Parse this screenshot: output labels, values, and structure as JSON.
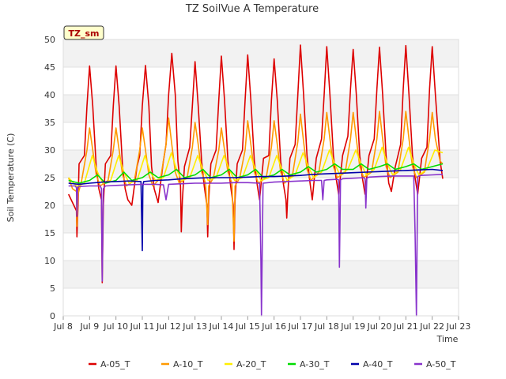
{
  "chart_data": {
    "type": "line",
    "title": "TZ SoilVue A Temperature",
    "xlabel": "Time",
    "ylabel": "Soil Temperature (C)",
    "badge": "TZ_sm",
    "xlim": [
      8,
      23
    ],
    "ylim": [
      0,
      50
    ],
    "x_ticks": [
      {
        "value": 8,
        "label": "Jul 8"
      },
      {
        "value": 9,
        "label": "Jul 9"
      },
      {
        "value": 10,
        "label": "Jul 10"
      },
      {
        "value": 11,
        "label": "Jul 11"
      },
      {
        "value": 12,
        "label": "Jul 12"
      },
      {
        "value": 13,
        "label": "Jul 13"
      },
      {
        "value": 14,
        "label": "Jul 14"
      },
      {
        "value": 15,
        "label": "Jul 15"
      },
      {
        "value": 16,
        "label": "Jul 16"
      },
      {
        "value": 17,
        "label": "Jul 17"
      },
      {
        "value": 18,
        "label": "Jul 18"
      },
      {
        "value": 19,
        "label": "Jul 19"
      },
      {
        "value": 20,
        "label": "Jul 20"
      },
      {
        "value": 21,
        "label": "Jul 21"
      },
      {
        "value": 22,
        "label": "Jul 22"
      },
      {
        "value": 23,
        "label": "Jul 23"
      }
    ],
    "y_ticks": [
      0,
      5,
      10,
      15,
      20,
      25,
      30,
      35,
      40,
      45,
      50
    ],
    "legend_position": "bottom",
    "grid": true,
    "series": [
      {
        "name": "A-05_T",
        "color": "#dd0000",
        "x": [
          8.2,
          8.35,
          8.5,
          8.52,
          8.56,
          8.6,
          8.8,
          8.9,
          9.0,
          9.12,
          9.25,
          9.35,
          9.45,
          9.48,
          9.52,
          9.6,
          9.8,
          9.9,
          10.0,
          10.12,
          10.25,
          10.35,
          10.45,
          10.6,
          10.8,
          10.9,
          11.0,
          11.12,
          11.25,
          11.35,
          11.45,
          11.6,
          11.8,
          11.9,
          12.0,
          12.12,
          12.25,
          12.35,
          12.45,
          12.48,
          12.52,
          12.6,
          12.8,
          12.9,
          13.0,
          13.12,
          13.25,
          13.35,
          13.45,
          13.48,
          13.52,
          13.6,
          13.8,
          13.9,
          14.0,
          14.12,
          14.25,
          14.35,
          14.45,
          14.48,
          14.52,
          14.6,
          14.8,
          14.9,
          15.0,
          15.12,
          15.25,
          15.35,
          15.45,
          15.6,
          15.8,
          15.9,
          16.0,
          16.12,
          16.25,
          16.35,
          16.45,
          16.48,
          16.52,
          16.6,
          16.8,
          16.9,
          17.0,
          17.12,
          17.25,
          17.35,
          17.45,
          17.6,
          17.8,
          17.9,
          18.0,
          18.12,
          18.25,
          18.35,
          18.45,
          18.6,
          18.8,
          18.9,
          19.0,
          19.12,
          19.25,
          19.35,
          19.45,
          19.6,
          19.8,
          19.9,
          20.0,
          20.12,
          20.25,
          20.35,
          20.45,
          20.6,
          20.8,
          20.9,
          21.0,
          21.12,
          21.25,
          21.35,
          21.45,
          21.6,
          21.8,
          21.9,
          22.0,
          22.12,
          22.3,
          22.4
        ],
        "y": [
          22.0,
          20.5,
          19.0,
          14.3,
          20.0,
          27.5,
          29.0,
          38.0,
          45.2,
          38.0,
          27.0,
          23.0,
          21.0,
          6.0,
          20.0,
          27.5,
          29.0,
          38.0,
          45.2,
          38.0,
          27.0,
          23.0,
          21.0,
          20.0,
          27.0,
          29.0,
          38.0,
          45.3,
          38.0,
          27.0,
          23.0,
          20.5,
          28.0,
          31.0,
          40.0,
          47.5,
          40.0,
          28.0,
          23.5,
          15.2,
          21.0,
          27.0,
          30.5,
          38.0,
          46.0,
          38.0,
          28.0,
          23.5,
          20.0,
          14.3,
          21.0,
          27.5,
          30.0,
          39.0,
          47.0,
          39.0,
          28.0,
          23.5,
          20.0,
          12.0,
          21.0,
          27.5,
          30.0,
          39.0,
          47.2,
          39.0,
          28.0,
          24.0,
          21.0,
          28.5,
          29.0,
          39.0,
          46.5,
          39.0,
          28.0,
          24.0,
          21.0,
          17.7,
          22.0,
          28.5,
          31.0,
          40.0,
          49.0,
          40.0,
          29.0,
          24.5,
          21.0,
          28.5,
          32.0,
          40.0,
          48.7,
          40.0,
          29.0,
          25.0,
          22.0,
          29.0,
          32.5,
          41.0,
          48.2,
          40.0,
          29.0,
          25.0,
          22.0,
          29.0,
          32.0,
          41.0,
          48.6,
          40.0,
          29.0,
          24.0,
          22.5,
          27.0,
          31.0,
          41.0,
          48.9,
          40.0,
          29.0,
          25.0,
          22.0,
          28.5,
          30.5,
          41.0,
          48.7,
          40.0,
          28.0,
          24.8
        ]
      },
      {
        "name": "A-10_T",
        "color": "#ff9900",
        "x": [
          8.2,
          8.35,
          8.5,
          8.52,
          8.56,
          8.7,
          8.9,
          9.0,
          9.12,
          9.25,
          9.4,
          9.7,
          9.9,
          10.0,
          10.12,
          10.25,
          10.4,
          10.7,
          10.9,
          11.0,
          11.12,
          11.25,
          11.4,
          11.7,
          11.9,
          12.0,
          12.12,
          12.25,
          12.4,
          12.7,
          12.9,
          13.0,
          13.12,
          13.25,
          13.4,
          13.48,
          13.52,
          13.7,
          13.9,
          14.0,
          14.12,
          14.25,
          14.4,
          14.48,
          14.52,
          14.7,
          14.9,
          15.0,
          15.12,
          15.25,
          15.4,
          15.7,
          15.9,
          16.0,
          16.12,
          16.25,
          16.4,
          16.7,
          16.9,
          17.0,
          17.12,
          17.25,
          17.4,
          17.7,
          17.9,
          18.0,
          18.12,
          18.25,
          18.4,
          18.7,
          18.9,
          19.0,
          19.12,
          19.25,
          19.4,
          19.7,
          19.9,
          20.0,
          20.12,
          20.25,
          20.4,
          20.7,
          20.9,
          21.0,
          21.12,
          21.25,
          21.4,
          21.7,
          21.9,
          22.0,
          22.12,
          22.3,
          22.4
        ],
        "y": [
          25.0,
          23.0,
          22.5,
          16.2,
          22.0,
          24.5,
          30.0,
          34.0,
          30.0,
          25.5,
          23.5,
          24.5,
          30.0,
          34.0,
          30.0,
          25.5,
          23.5,
          24.5,
          30.0,
          34.0,
          30.0,
          25.5,
          23.5,
          25.0,
          31.0,
          35.8,
          31.0,
          26.0,
          24.0,
          25.0,
          30.5,
          35.0,
          31.0,
          26.0,
          24.0,
          16.5,
          23.5,
          25.0,
          30.0,
          34.0,
          30.0,
          26.0,
          24.0,
          13.5,
          23.5,
          25.0,
          30.0,
          35.3,
          31.0,
          26.0,
          24.0,
          25.0,
          30.5,
          35.3,
          31.0,
          26.0,
          24.0,
          25.5,
          31.5,
          36.5,
          31.5,
          26.5,
          24.5,
          26.0,
          32.0,
          36.8,
          32.0,
          27.0,
          25.0,
          26.0,
          32.0,
          36.8,
          32.0,
          27.0,
          25.0,
          26.0,
          32.0,
          37.0,
          32.0,
          27.0,
          25.0,
          26.0,
          32.0,
          37.0,
          32.0,
          27.0,
          25.0,
          26.0,
          32.0,
          36.8,
          32.0,
          28.0,
          27.5
        ]
      },
      {
        "name": "A-20_T",
        "color": "#ffee00",
        "x": [
          8.2,
          8.5,
          8.52,
          8.56,
          8.8,
          9.1,
          9.3,
          9.5,
          9.8,
          10.1,
          10.3,
          10.5,
          10.8,
          11.1,
          11.3,
          11.5,
          11.8,
          12.1,
          12.3,
          12.5,
          12.8,
          13.1,
          13.3,
          13.5,
          13.8,
          14.1,
          14.3,
          14.5,
          14.8,
          15.1,
          15.3,
          15.5,
          15.8,
          16.1,
          16.3,
          16.5,
          16.8,
          17.1,
          17.3,
          17.5,
          17.8,
          18.1,
          18.3,
          18.5,
          18.8,
          19.1,
          19.3,
          19.5,
          19.8,
          20.1,
          20.3,
          20.5,
          20.8,
          21.1,
          21.3,
          21.5,
          21.8,
          22.1,
          22.4
        ],
        "y": [
          25.0,
          23.5,
          20.0,
          23.5,
          24.0,
          29.0,
          26.0,
          24.0,
          24.5,
          29.0,
          26.0,
          24.0,
          24.5,
          29.0,
          26.0,
          24.5,
          25.0,
          29.5,
          26.5,
          24.5,
          25.0,
          29.0,
          26.5,
          24.5,
          25.0,
          29.0,
          26.5,
          24.5,
          25.0,
          29.0,
          26.5,
          24.5,
          25.0,
          29.0,
          26.5,
          24.5,
          25.5,
          29.5,
          27.0,
          25.0,
          26.0,
          30.0,
          27.5,
          25.5,
          26.5,
          30.0,
          27.5,
          25.5,
          26.5,
          30.5,
          27.5,
          25.5,
          26.5,
          30.5,
          27.5,
          25.5,
          26.5,
          30.0,
          29.5
        ]
      },
      {
        "name": "A-30_T",
        "color": "#00dd00",
        "x": [
          8.2,
          8.6,
          9.0,
          9.3,
          9.6,
          10.0,
          10.3,
          10.6,
          11.0,
          11.3,
          11.6,
          12.0,
          12.3,
          12.6,
          13.0,
          13.3,
          13.6,
          14.0,
          14.3,
          14.6,
          15.0,
          15.3,
          15.6,
          16.0,
          16.3,
          16.6,
          17.0,
          17.3,
          17.6,
          18.0,
          18.3,
          18.6,
          19.0,
          19.3,
          19.6,
          20.0,
          20.3,
          20.6,
          21.0,
          21.3,
          21.6,
          22.0,
          22.4
        ],
        "y": [
          24.5,
          24.0,
          24.5,
          25.5,
          24.0,
          24.5,
          26.0,
          24.5,
          25.0,
          26.0,
          25.0,
          25.5,
          26.5,
          25.0,
          25.5,
          26.5,
          25.0,
          25.5,
          26.5,
          25.0,
          25.5,
          26.5,
          25.0,
          25.5,
          26.5,
          25.5,
          26.0,
          27.0,
          26.0,
          26.5,
          27.5,
          26.5,
          26.5,
          27.5,
          26.5,
          27.0,
          27.5,
          26.5,
          27.0,
          27.5,
          26.5,
          27.0,
          27.5
        ]
      },
      {
        "name": "A-40_T",
        "color": "#0000aa",
        "x": [
          8.2,
          8.6,
          9.0,
          9.5,
          10.0,
          10.5,
          10.95,
          11.0,
          11.02,
          11.05,
          11.5,
          12.0,
          12.5,
          13.0,
          13.5,
          14.0,
          14.5,
          15.0,
          15.5,
          16.0,
          16.5,
          17.0,
          17.5,
          18.0,
          18.5,
          19.0,
          19.5,
          20.0,
          20.5,
          21.0,
          21.5,
          22.0,
          22.4
        ],
        "y": [
          24.0,
          23.8,
          24.0,
          24.2,
          24.3,
          24.4,
          24.3,
          11.8,
          23.5,
          24.3,
          24.5,
          24.6,
          24.8,
          24.9,
          25.0,
          25.0,
          25.0,
          25.1,
          25.2,
          25.2,
          25.3,
          25.4,
          25.6,
          25.7,
          25.8,
          25.9,
          26.0,
          26.1,
          26.2,
          26.3,
          26.4,
          26.5,
          26.3
        ]
      },
      {
        "name": "A-50_T",
        "color": "#8833cc",
        "x": [
          8.2,
          8.45,
          8.5,
          8.52,
          8.55,
          8.6,
          9.0,
          9.4,
          9.45,
          9.48,
          9.52,
          9.6,
          10.0,
          10.5,
          11.0,
          11.5,
          11.8,
          11.9,
          12.0,
          12.5,
          13.0,
          13.5,
          14.0,
          14.5,
          15.0,
          15.45,
          15.5,
          15.52,
          15.58,
          16.0,
          16.5,
          17.0,
          17.5,
          17.8,
          17.85,
          17.9,
          18.0,
          18.4,
          18.45,
          18.48,
          18.52,
          18.6,
          19.0,
          19.4,
          19.45,
          19.48,
          19.52,
          19.6,
          20.0,
          20.5,
          21.0,
          21.3,
          21.35,
          21.4,
          21.45,
          21.55,
          22.0,
          22.4
        ],
        "y": [
          23.5,
          23.5,
          23.2,
          18.0,
          23.3,
          23.4,
          23.5,
          23.5,
          23.0,
          6.3,
          23.0,
          23.5,
          23.6,
          23.7,
          23.8,
          23.8,
          23.7,
          21.0,
          23.8,
          23.9,
          24.0,
          24.0,
          24.0,
          24.1,
          24.1,
          24.0,
          10.0,
          0.0,
          24.0,
          24.2,
          24.3,
          24.4,
          24.5,
          24.5,
          21.0,
          24.5,
          24.6,
          24.7,
          24.6,
          8.8,
          24.6,
          24.8,
          24.9,
          25.0,
          24.8,
          19.5,
          24.9,
          25.1,
          25.2,
          25.3,
          25.3,
          25.3,
          15.0,
          0.0,
          25.2,
          25.4,
          25.5,
          25.6
        ]
      }
    ]
  }
}
